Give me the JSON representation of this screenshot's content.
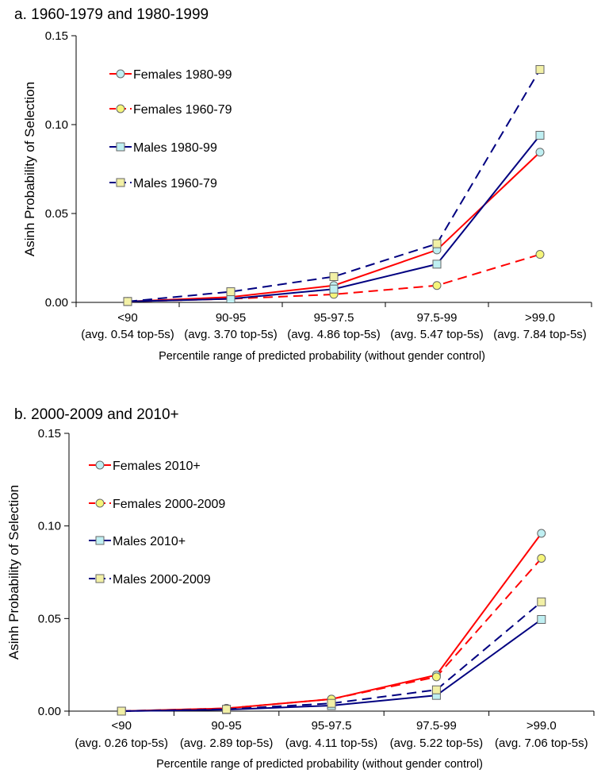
{
  "chart_data": [
    {
      "type": "line",
      "title": "a. 1960-1979 and 1980-1999",
      "xlabel": "Percentile range of predicted probability (without gender control)",
      "ylabel": "Asinh Probability of Selection",
      "categories": [
        "<90",
        "90-95",
        "95-97.5",
        "97.5-99",
        ">99.0"
      ],
      "category_notes": [
        "(avg. 0.54 top-5s)",
        "(avg. 3.70 top-5s)",
        "(avg. 4.86 top-5s)",
        "(avg. 5.47 top-5s)",
        "(avg. 7.84 top-5s)"
      ],
      "ylim": [
        0,
        0.15
      ],
      "yticks": [
        "0.00",
        "0.05",
        "0.10",
        "0.15"
      ],
      "legend_position": "top-left",
      "series": [
        {
          "name": "Females 1980-99",
          "values": [
            0.0005,
            0.003,
            0.0095,
            0.0295,
            0.0845
          ],
          "color": "#ff0000",
          "dash": "solid",
          "marker": "circle",
          "fill": "#bfeff2"
        },
        {
          "name": "Females 1960-79",
          "values": [
            0.0005,
            0.002,
            0.0045,
            0.0095,
            0.027
          ],
          "color": "#ff0000",
          "dash": "dashed",
          "marker": "circle",
          "fill": "#f5f57a"
        },
        {
          "name": "Males 1980-99",
          "values": [
            0.0005,
            0.002,
            0.0075,
            0.0215,
            0.094
          ],
          "color": "#000080",
          "dash": "solid",
          "marker": "square",
          "fill": "#bfeff2"
        },
        {
          "name": "Males 1960-79",
          "values": [
            0.0005,
            0.006,
            0.0145,
            0.033,
            0.131
          ],
          "color": "#000080",
          "dash": "dashed",
          "marker": "square",
          "fill": "#f2f0a6"
        }
      ]
    },
    {
      "type": "line",
      "title": "b. 2000-2009 and 2010+",
      "xlabel": "Percentile range of predicted probability (without gender control)",
      "ylabel": "Asinh Probability of Selection",
      "categories": [
        "<90",
        "90-95",
        "95-97.5",
        "97.5-99",
        ">99.0"
      ],
      "category_notes": [
        "(avg. 0.26 top-5s)",
        "(avg. 2.89 top-5s)",
        "(avg. 4.11 top-5s)",
        "(avg. 5.22 top-5s)",
        "(avg. 7.06 top-5s)"
      ],
      "ylim": [
        0,
        0.15
      ],
      "yticks": [
        "0.00",
        "0.05",
        "0.10",
        "0.15"
      ],
      "legend_position": "top-left",
      "series": [
        {
          "name": "Females 2010+",
          "values": [
            0.0,
            0.0015,
            0.0065,
            0.0195,
            0.096
          ],
          "color": "#ff0000",
          "dash": "solid",
          "marker": "circle",
          "fill": "#bfeff2"
        },
        {
          "name": "Females 2000-2009",
          "values": [
            0.0,
            0.0015,
            0.0065,
            0.0185,
            0.0825
          ],
          "color": "#ff0000",
          "dash": "dashed",
          "marker": "circle",
          "fill": "#f5f57a"
        },
        {
          "name": "Males 2010+",
          "values": [
            0.0,
            0.0008,
            0.003,
            0.0085,
            0.0495
          ],
          "color": "#000080",
          "dash": "solid",
          "marker": "square",
          "fill": "#bfeff2"
        },
        {
          "name": "Males 2000-2009",
          "values": [
            0.0,
            0.001,
            0.0042,
            0.0115,
            0.059
          ],
          "color": "#000080",
          "dash": "dashed",
          "marker": "square",
          "fill": "#f2f0a6"
        }
      ]
    }
  ]
}
